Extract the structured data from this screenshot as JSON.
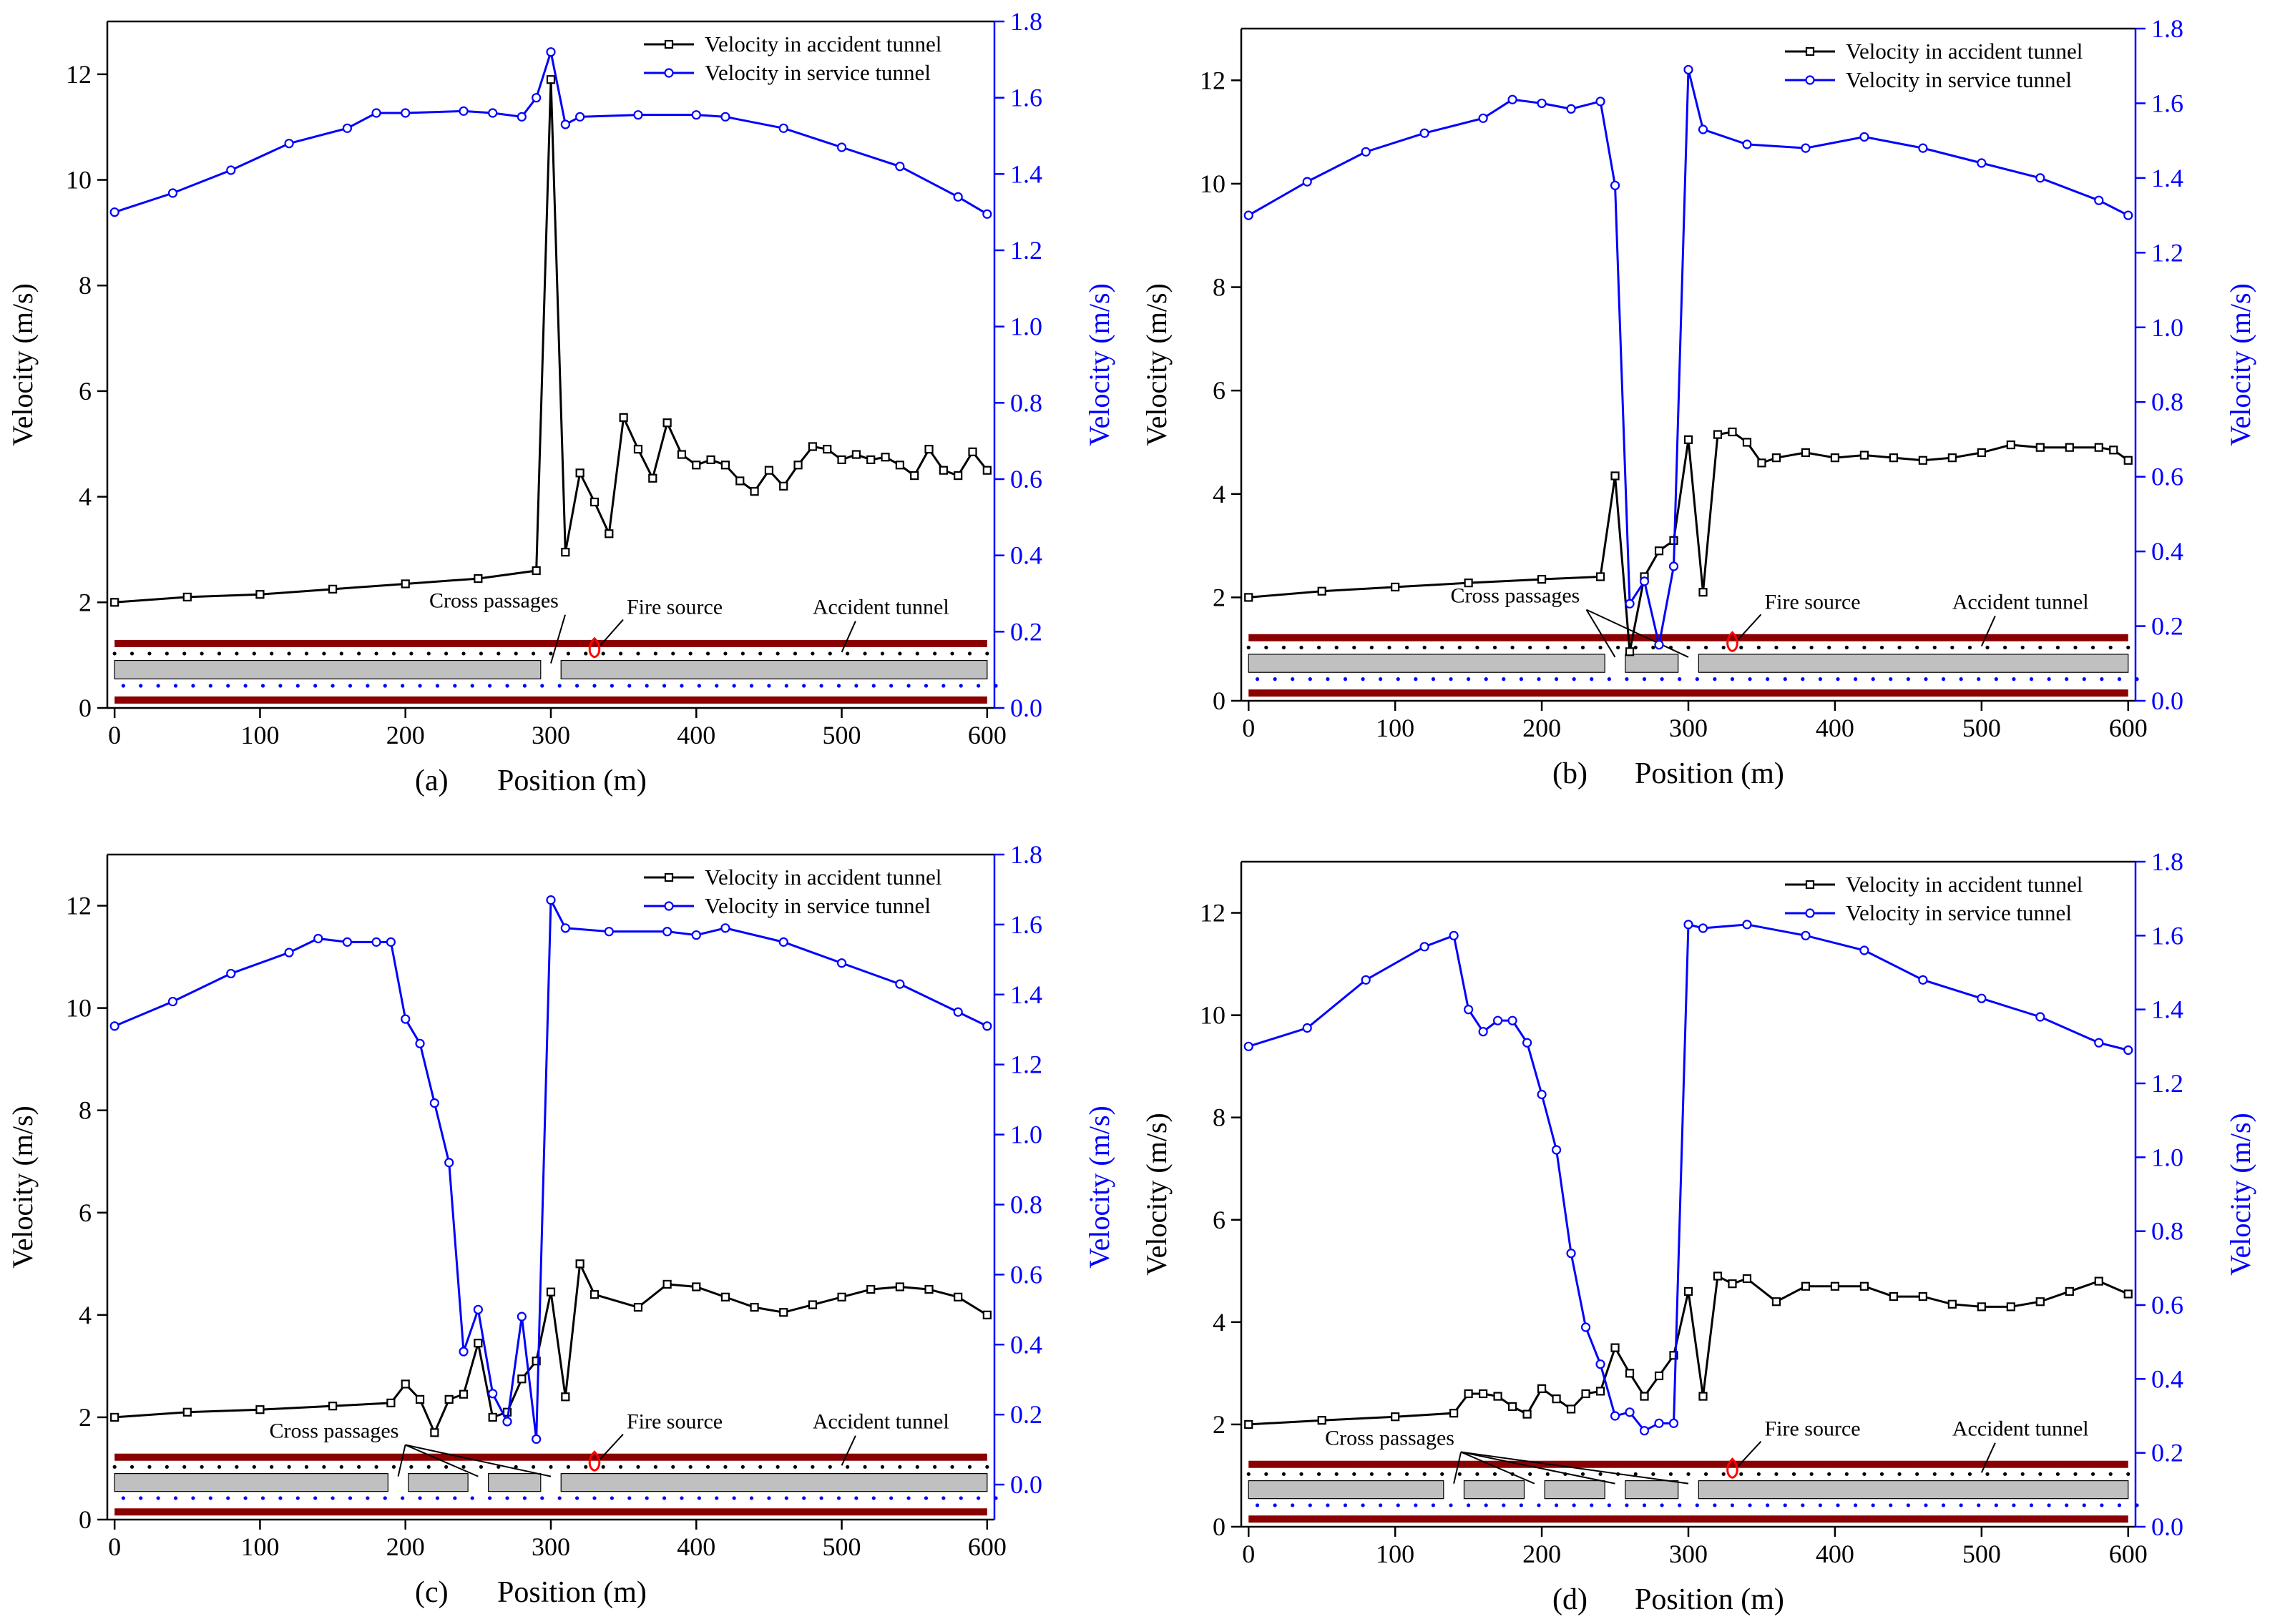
{
  "figure": {
    "left_axis_label": "Velocity (m/s)",
    "right_axis_label": "Velocity (m/s)",
    "x_axis_label": "Position (m)",
    "legend": {
      "accident": "Velocity in accident tunnel",
      "service": "Velocity in service tunnel"
    },
    "diagram_labels": {
      "cross_passages": "Cross passages",
      "fire_source": "Fire source",
      "accident_tunnel": "Accident tunnel"
    },
    "colors": {
      "accident": "#000000",
      "service": "#0000ff",
      "tunnel_wall": "#8b0000",
      "cross_passage_fill": "#c0c0c0",
      "fire": "#ff0000"
    }
  },
  "chart_data": [
    {
      "panel": "(a)",
      "type": "line",
      "x_label": "Position (m)",
      "y_label_left": "Velocity (m/s)",
      "y_label_right": "Velocity (m/s)",
      "xlim": [
        -5,
        605
      ],
      "ylim_left": [
        0,
        13
      ],
      "ylim_right": [
        0,
        1.8
      ],
      "xticks": [
        0,
        100,
        200,
        300,
        400,
        500,
        600
      ],
      "yticks_left": [
        0,
        2,
        4,
        6,
        8,
        10,
        12
      ],
      "yticks_right": [
        0.0,
        0.2,
        0.4,
        0.6,
        0.8,
        1.0,
        1.2,
        1.4,
        1.6,
        1.8
      ],
      "cross_passages_at": [
        300
      ],
      "fire_source_at": 330,
      "series": [
        {
          "name": "Velocity in accident tunnel",
          "axis": "left",
          "x": [
            0,
            50,
            100,
            150,
            200,
            250,
            290,
            300,
            310,
            320,
            330,
            340,
            350,
            360,
            370,
            380,
            390,
            400,
            410,
            420,
            430,
            440,
            450,
            460,
            470,
            480,
            490,
            500,
            510,
            520,
            530,
            540,
            550,
            560,
            570,
            580,
            590,
            600
          ],
          "y": [
            2.0,
            2.1,
            2.15,
            2.25,
            2.35,
            2.45,
            2.6,
            11.9,
            2.95,
            4.45,
            3.9,
            3.3,
            5.5,
            4.9,
            4.35,
            5.4,
            4.8,
            4.6,
            4.7,
            4.6,
            4.3,
            4.1,
            4.5,
            4.2,
            4.6,
            4.95,
            4.9,
            4.7,
            4.8,
            4.7,
            4.75,
            4.6,
            4.4,
            4.9,
            4.5,
            4.4,
            4.85,
            4.5
          ]
        },
        {
          "name": "Velocity in service tunnel",
          "axis": "right",
          "x": [
            0,
            40,
            80,
            120,
            160,
            180,
            200,
            240,
            260,
            280,
            290,
            300,
            310,
            320,
            360,
            400,
            420,
            460,
            500,
            540,
            580,
            600
          ],
          "y": [
            1.3,
            1.35,
            1.41,
            1.48,
            1.52,
            1.56,
            1.56,
            1.565,
            1.56,
            1.55,
            1.6,
            1.72,
            1.53,
            1.55,
            1.555,
            1.555,
            1.55,
            1.52,
            1.47,
            1.42,
            1.34,
            1.295
          ]
        }
      ]
    },
    {
      "panel": "(b)",
      "type": "line",
      "x_label": "Position (m)",
      "y_label_left": "Velocity (m/s)",
      "y_label_right": "Velocity (m/s)",
      "xlim": [
        -5,
        605
      ],
      "ylim_left": [
        0,
        13
      ],
      "ylim_right": [
        0,
        1.8
      ],
      "xticks": [
        0,
        100,
        200,
        300,
        400,
        500,
        600
      ],
      "yticks_left": [
        0,
        2,
        4,
        6,
        8,
        10,
        12
      ],
      "yticks_right": [
        0.0,
        0.2,
        0.4,
        0.6,
        0.8,
        1.0,
        1.2,
        1.4,
        1.6,
        1.8
      ],
      "cross_passages_at": [
        250,
        300
      ],
      "fire_source_at": 330,
      "series": [
        {
          "name": "Velocity in accident tunnel",
          "axis": "left",
          "x": [
            0,
            50,
            100,
            150,
            200,
            240,
            250,
            260,
            270,
            280,
            290,
            300,
            310,
            320,
            330,
            340,
            350,
            360,
            380,
            400,
            420,
            440,
            460,
            480,
            500,
            520,
            540,
            560,
            580,
            590,
            600
          ],
          "y": [
            2.0,
            2.12,
            2.2,
            2.28,
            2.35,
            2.4,
            4.35,
            0.95,
            2.4,
            2.9,
            3.1,
            5.05,
            2.1,
            5.15,
            5.2,
            5.0,
            4.6,
            4.7,
            4.8,
            4.7,
            4.75,
            4.7,
            4.65,
            4.7,
            4.8,
            4.95,
            4.9,
            4.9,
            4.9,
            4.85,
            4.65
          ]
        },
        {
          "name": "Velocity in service tunnel",
          "axis": "right",
          "x": [
            0,
            40,
            80,
            120,
            160,
            180,
            200,
            220,
            240,
            250,
            260,
            270,
            280,
            290,
            300,
            310,
            340,
            380,
            420,
            460,
            500,
            540,
            580,
            600
          ],
          "y": [
            1.3,
            1.39,
            1.47,
            1.52,
            1.56,
            1.61,
            1.6,
            1.585,
            1.605,
            1.38,
            0.26,
            0.32,
            0.15,
            0.36,
            1.69,
            1.53,
            1.49,
            1.48,
            1.51,
            1.48,
            1.44,
            1.4,
            1.34,
            1.3
          ]
        }
      ]
    },
    {
      "panel": "(c)",
      "type": "line",
      "x_label": "Position (m)",
      "y_label_left": "Velocity (m/s)",
      "y_label_right": "Velocity (m/s)",
      "xlim": [
        -5,
        605
      ],
      "ylim_left": [
        0,
        13
      ],
      "ylim_right": [
        -0.1,
        1.8
      ],
      "xticks": [
        0,
        100,
        200,
        300,
        400,
        500,
        600
      ],
      "yticks_left": [
        0,
        2,
        4,
        6,
        8,
        10,
        12
      ],
      "yticks_right": [
        0.0,
        0.2,
        0.4,
        0.6,
        0.8,
        1.0,
        1.2,
        1.4,
        1.6,
        1.8
      ],
      "cross_passages_at": [
        195,
        250,
        300
      ],
      "fire_source_at": 330,
      "series": [
        {
          "name": "Velocity in accident tunnel",
          "axis": "left",
          "x": [
            0,
            50,
            100,
            150,
            190,
            200,
            210,
            220,
            230,
            240,
            250,
            260,
            270,
            280,
            290,
            300,
            310,
            320,
            330,
            360,
            380,
            400,
            420,
            440,
            460,
            480,
            500,
            520,
            540,
            560,
            580,
            600
          ],
          "y": [
            2.0,
            2.1,
            2.15,
            2.22,
            2.28,
            2.65,
            2.35,
            1.7,
            2.35,
            2.45,
            3.45,
            2.0,
            2.1,
            2.75,
            3.1,
            4.45,
            2.4,
            5.0,
            4.4,
            4.15,
            4.6,
            4.55,
            4.35,
            4.15,
            4.05,
            4.2,
            4.35,
            4.5,
            4.55,
            4.5,
            4.35,
            4.0
          ]
        },
        {
          "name": "Velocity in service tunnel",
          "axis": "right",
          "x": [
            0,
            40,
            80,
            120,
            140,
            160,
            180,
            190,
            200,
            210,
            220,
            230,
            240,
            250,
            260,
            270,
            280,
            290,
            300,
            310,
            340,
            380,
            400,
            420,
            460,
            500,
            540,
            580,
            600
          ],
          "y": [
            1.31,
            1.38,
            1.46,
            1.52,
            1.56,
            1.55,
            1.55,
            1.55,
            1.33,
            1.26,
            1.09,
            0.92,
            0.38,
            0.5,
            0.26,
            0.18,
            0.48,
            0.13,
            1.67,
            1.59,
            1.58,
            1.58,
            1.57,
            1.59,
            1.55,
            1.49,
            1.43,
            1.35,
            1.31
          ]
        }
      ]
    },
    {
      "panel": "(d)",
      "type": "line",
      "x_label": "Position (m)",
      "y_label_left": "Velocity (m/s)",
      "y_label_right": "Velocity (m/s)",
      "xlim": [
        -5,
        605
      ],
      "ylim_left": [
        0,
        13
      ],
      "ylim_right": [
        0,
        1.8
      ],
      "xticks": [
        0,
        100,
        200,
        300,
        400,
        500,
        600
      ],
      "yticks_left": [
        0,
        2,
        4,
        6,
        8,
        10,
        12
      ],
      "yticks_right": [
        0.0,
        0.2,
        0.4,
        0.6,
        0.8,
        1.0,
        1.2,
        1.4,
        1.6,
        1.8
      ],
      "cross_passages_at": [
        140,
        195,
        250,
        300
      ],
      "fire_source_at": 330,
      "series": [
        {
          "name": "Velocity in accident tunnel",
          "axis": "left",
          "x": [
            0,
            50,
            100,
            140,
            150,
            160,
            170,
            180,
            190,
            200,
            210,
            220,
            230,
            240,
            250,
            260,
            270,
            280,
            290,
            300,
            310,
            320,
            330,
            340,
            360,
            380,
            400,
            420,
            440,
            460,
            480,
            500,
            520,
            540,
            560,
            580,
            600
          ],
          "y": [
            2.0,
            2.08,
            2.15,
            2.22,
            2.6,
            2.6,
            2.55,
            2.35,
            2.2,
            2.7,
            2.5,
            2.3,
            2.6,
            2.65,
            3.5,
            3.0,
            2.55,
            2.95,
            3.35,
            4.6,
            2.55,
            4.9,
            4.75,
            4.85,
            4.4,
            4.7,
            4.7,
            4.7,
            4.5,
            4.5,
            4.35,
            4.3,
            4.3,
            4.4,
            4.6,
            4.8,
            4.55
          ]
        },
        {
          "name": "Velocity in service tunnel",
          "axis": "right",
          "x": [
            0,
            40,
            80,
            120,
            140,
            150,
            160,
            170,
            180,
            190,
            200,
            210,
            220,
            230,
            240,
            250,
            260,
            270,
            280,
            290,
            300,
            310,
            340,
            380,
            420,
            460,
            500,
            540,
            580,
            600
          ],
          "y": [
            1.3,
            1.35,
            1.48,
            1.57,
            1.6,
            1.4,
            1.34,
            1.37,
            1.37,
            1.31,
            1.17,
            1.02,
            0.74,
            0.54,
            0.44,
            0.3,
            0.31,
            0.26,
            0.28,
            0.28,
            1.63,
            1.62,
            1.63,
            1.6,
            1.56,
            1.48,
            1.43,
            1.38,
            1.31,
            1.29
          ]
        }
      ]
    }
  ]
}
